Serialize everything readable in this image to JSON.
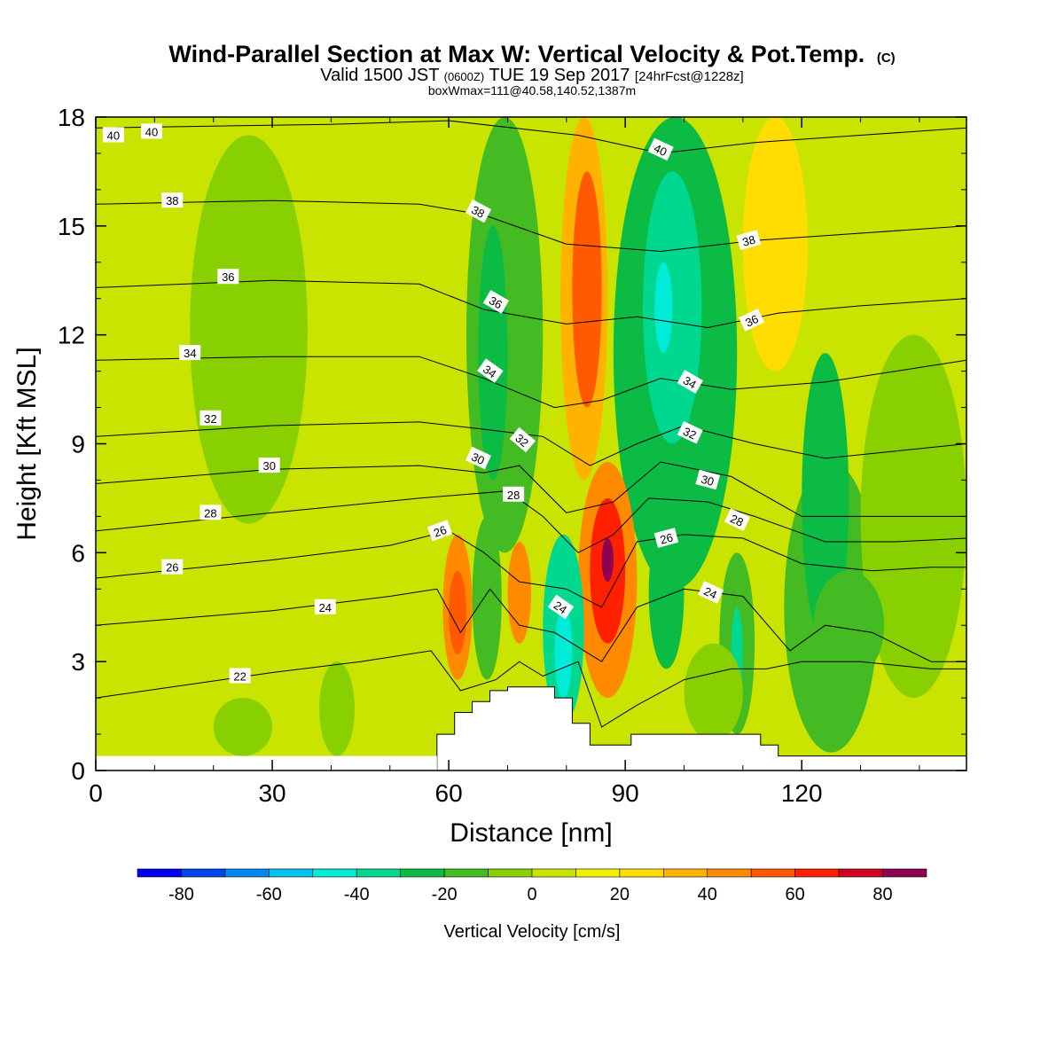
{
  "header": {
    "title": "Wind-Parallel Section at Max W: Vertical Velocity & Pot.Temp.",
    "copyright": "(C)",
    "line2_a": "Valid 1500 JST",
    "line2_b": "(0600Z)",
    "line2_c": "TUE 19 Sep 2017",
    "line2_d": "[24hrFcst@1228z]",
    "line3": "boxWmax=111@40.58,140.52,1387m"
  },
  "chart_data": {
    "type": "heatmap",
    "xlabel": "Distance [nm]",
    "ylabel": "Height [Kft MSL]",
    "xlim": [
      0,
      148
    ],
    "ylim": [
      0,
      18
    ],
    "x_ticks": [
      0,
      30,
      60,
      90,
      120
    ],
    "y_ticks": [
      0,
      3,
      6,
      9,
      12,
      15,
      18
    ],
    "colorbar": {
      "label": "Vertical Velocity [cm/s]",
      "bounds": [
        -90,
        90
      ],
      "levels": [
        -90,
        -80,
        -70,
        -60,
        -50,
        -40,
        -30,
        -20,
        -10,
        0,
        10,
        20,
        30,
        40,
        50,
        60,
        70,
        80,
        90
      ],
      "colors": [
        "#0000ee",
        "#0044ee",
        "#0088f0",
        "#00c4f0",
        "#00ecd8",
        "#00d890",
        "#0cbb44",
        "#44bb22",
        "#88d000",
        "#c8e400",
        "#f2f200",
        "#ffdd00",
        "#ffb300",
        "#ff8a00",
        "#ff5a00",
        "#ff2000",
        "#d00020",
        "#900050",
        "#580090"
      ],
      "tick_values": [
        -80,
        -60,
        -40,
        -20,
        0,
        20,
        40,
        60,
        80
      ]
    },
    "terrain": [
      [
        58,
        0
      ],
      [
        58,
        1.0
      ],
      [
        61,
        1.0
      ],
      [
        61,
        1.6
      ],
      [
        64,
        1.6
      ],
      [
        64,
        1.9
      ],
      [
        67,
        1.9
      ],
      [
        67,
        2.2
      ],
      [
        70,
        2.2
      ],
      [
        70,
        2.3
      ],
      [
        78,
        2.3
      ],
      [
        78,
        2.0
      ],
      [
        81,
        2.0
      ],
      [
        81,
        1.3
      ],
      [
        84,
        1.3
      ],
      [
        84,
        0.7
      ],
      [
        91,
        0.7
      ],
      [
        91,
        1.0
      ],
      [
        113,
        1.0
      ],
      [
        113,
        0.7
      ],
      [
        116,
        0.7
      ],
      [
        116,
        0.4
      ],
      [
        148,
        0.4
      ],
      [
        148,
        0
      ]
    ],
    "vertical_velocity_cells": [
      {
        "x": [
          16,
          36
        ],
        "y": [
          6.8,
          17.5
        ],
        "value": -5
      },
      {
        "x": [
          22,
          34
        ],
        "y": [
          8.5,
          16.5
        ],
        "value": -8
      },
      {
        "x": [
          63,
          76
        ],
        "y": [
          6.0,
          18.0
        ],
        "value": -15
      },
      {
        "x": [
          65,
          70
        ],
        "y": [
          8.0,
          15.0
        ],
        "value": -22
      },
      {
        "x": [
          79,
          87
        ],
        "y": [
          8.0,
          18.0
        ],
        "value": 35
      },
      {
        "x": [
          81,
          86
        ],
        "y": [
          10.0,
          16.5
        ],
        "value": 50
      },
      {
        "x": [
          88,
          109
        ],
        "y": [
          5.0,
          18.0
        ],
        "value": -25
      },
      {
        "x": [
          93,
          103
        ],
        "y": [
          9.0,
          16.5
        ],
        "value": -35
      },
      {
        "x": [
          95,
          98
        ],
        "y": [
          11.5,
          14.0
        ],
        "value": -45
      },
      {
        "x": [
          110,
          121
        ],
        "y": [
          11.0,
          18.0
        ],
        "value": 25
      },
      {
        "x": [
          82,
          92
        ],
        "y": [
          2.0,
          8.5
        ],
        "value": 45
      },
      {
        "x": [
          84,
          90
        ],
        "y": [
          3.5,
          7.5
        ],
        "value": 65
      },
      {
        "x": [
          86,
          88
        ],
        "y": [
          5.2,
          6.4
        ],
        "value": 85
      },
      {
        "x": [
          59,
          64
        ],
        "y": [
          2.5,
          6.5
        ],
        "value": 40
      },
      {
        "x": [
          60,
          63
        ],
        "y": [
          3.2,
          5.5
        ],
        "value": 58
      },
      {
        "x": [
          70,
          74
        ],
        "y": [
          3.5,
          6.3
        ],
        "value": 40
      },
      {
        "x": [
          64,
          69
        ],
        "y": [
          2.5,
          7.0
        ],
        "value": -18
      },
      {
        "x": [
          76,
          83
        ],
        "y": [
          1.3,
          6.5
        ],
        "value": -35
      },
      {
        "x": [
          78,
          81
        ],
        "y": [
          2.0,
          4.5
        ],
        "value": -45
      },
      {
        "x": [
          94,
          100
        ],
        "y": [
          2.8,
          7.0
        ],
        "value": -30
      },
      {
        "x": [
          106,
          112
        ],
        "y": [
          1.0,
          6.0
        ],
        "value": -18
      },
      {
        "x": [
          108,
          110
        ],
        "y": [
          2.0,
          4.5
        ],
        "value": -40
      },
      {
        "x": [
          117,
          133
        ],
        "y": [
          0.5,
          8.5
        ],
        "value": -15
      },
      {
        "x": [
          120,
          128
        ],
        "y": [
          3.5,
          11.5
        ],
        "value": -22
      },
      {
        "x": [
          122,
          126
        ],
        "y": [
          7.0,
          11.0
        ],
        "value": -28
      },
      {
        "x": [
          130,
          148
        ],
        "y": [
          2.0,
          12.0
        ],
        "value": -7
      },
      {
        "x": [
          0,
          58
        ],
        "y": [
          0.4,
          3.5
        ],
        "value": 3
      },
      {
        "x": [
          38,
          44
        ],
        "y": [
          0.4,
          3.0
        ],
        "value": -8
      },
      {
        "x": [
          20,
          30
        ],
        "y": [
          0.4,
          2.0
        ],
        "value": -5
      },
      {
        "x": [
          122,
          134
        ],
        "y": [
          2.5,
          5.5
        ],
        "value": -12
      },
      {
        "x": [
          100,
          110
        ],
        "y": [
          0.8,
          3.5
        ],
        "value": -10
      }
    ],
    "isentropes": [
      {
        "label": "22",
        "points": [
          [
            0,
            2.0
          ],
          [
            30,
            2.7
          ],
          [
            45,
            3.0
          ],
          [
            57,
            3.3
          ],
          [
            62,
            2.2
          ],
          [
            68,
            2.5
          ],
          [
            72,
            3.0
          ],
          [
            76,
            2.6
          ],
          [
            82,
            3.0
          ],
          [
            86,
            1.2
          ],
          [
            92,
            1.8
          ],
          [
            100,
            2.5
          ],
          [
            108,
            2.8
          ],
          [
            114,
            2.8
          ],
          [
            120,
            3.0
          ],
          [
            130,
            3.0
          ],
          [
            142,
            2.8
          ],
          [
            148,
            2.8
          ]
        ]
      },
      {
        "label": "24",
        "points": [
          [
            0,
            4.0
          ],
          [
            30,
            4.4
          ],
          [
            50,
            4.8
          ],
          [
            58,
            5.0
          ],
          [
            62,
            3.8
          ],
          [
            67,
            5.0
          ],
          [
            72,
            4.0
          ],
          [
            78,
            3.8
          ],
          [
            86,
            3.0
          ],
          [
            92,
            4.5
          ],
          [
            100,
            5.0
          ],
          [
            110,
            4.8
          ],
          [
            118,
            3.3
          ],
          [
            124,
            4.0
          ],
          [
            132,
            3.8
          ],
          [
            142,
            3.0
          ],
          [
            148,
            3.0
          ]
        ]
      },
      {
        "label": "26",
        "points": [
          [
            0,
            5.3
          ],
          [
            30,
            5.8
          ],
          [
            50,
            6.2
          ],
          [
            60,
            6.6
          ],
          [
            66,
            6.0
          ],
          [
            72,
            5.2
          ],
          [
            80,
            5.0
          ],
          [
            86,
            4.5
          ],
          [
            92,
            6.3
          ],
          [
            100,
            6.5
          ],
          [
            110,
            6.4
          ],
          [
            120,
            5.7
          ],
          [
            132,
            5.5
          ],
          [
            142,
            5.6
          ],
          [
            148,
            5.6
          ]
        ]
      },
      {
        "label": "28",
        "points": [
          [
            0,
            6.6
          ],
          [
            30,
            7.1
          ],
          [
            55,
            7.5
          ],
          [
            70,
            7.7
          ],
          [
            76,
            7.0
          ],
          [
            82,
            6.0
          ],
          [
            88,
            6.5
          ],
          [
            94,
            7.5
          ],
          [
            104,
            7.4
          ],
          [
            112,
            7.0
          ],
          [
            124,
            6.3
          ],
          [
            136,
            6.3
          ],
          [
            148,
            6.4
          ]
        ]
      },
      {
        "label": "30",
        "points": [
          [
            0,
            7.9
          ],
          [
            30,
            8.3
          ],
          [
            55,
            8.4
          ],
          [
            66,
            8.2
          ],
          [
            72,
            8.4
          ],
          [
            80,
            7.1
          ],
          [
            88,
            7.4
          ],
          [
            96,
            8.5
          ],
          [
            108,
            8.1
          ],
          [
            120,
            7.0
          ],
          [
            136,
            7.0
          ],
          [
            148,
            7.0
          ]
        ]
      },
      {
        "label": "32",
        "points": [
          [
            0,
            9.2
          ],
          [
            30,
            9.5
          ],
          [
            55,
            9.6
          ],
          [
            66,
            9.4
          ],
          [
            76,
            9.2
          ],
          [
            84,
            8.4
          ],
          [
            92,
            9.0
          ],
          [
            100,
            9.5
          ],
          [
            112,
            9.0
          ],
          [
            124,
            8.6
          ],
          [
            136,
            8.8
          ],
          [
            148,
            9.0
          ]
        ]
      },
      {
        "label": "34",
        "points": [
          [
            0,
            11.3
          ],
          [
            30,
            11.4
          ],
          [
            55,
            11.4
          ],
          [
            66,
            10.8
          ],
          [
            78,
            10.0
          ],
          [
            86,
            10.2
          ],
          [
            96,
            10.8
          ],
          [
            108,
            10.5
          ],
          [
            124,
            10.7
          ],
          [
            136,
            11.0
          ],
          [
            148,
            11.3
          ]
        ]
      },
      {
        "label": "36",
        "points": [
          [
            0,
            13.3
          ],
          [
            30,
            13.5
          ],
          [
            55,
            13.4
          ],
          [
            66,
            12.7
          ],
          [
            80,
            12.3
          ],
          [
            92,
            12.5
          ],
          [
            104,
            12.2
          ],
          [
            116,
            12.6
          ],
          [
            130,
            12.8
          ],
          [
            148,
            13.0
          ]
        ]
      },
      {
        "label": "38",
        "points": [
          [
            0,
            15.6
          ],
          [
            30,
            15.7
          ],
          [
            55,
            15.6
          ],
          [
            66,
            15.3
          ],
          [
            80,
            14.5
          ],
          [
            96,
            14.3
          ],
          [
            112,
            14.6
          ],
          [
            130,
            14.8
          ],
          [
            148,
            15.0
          ]
        ]
      },
      {
        "label": "40",
        "points": [
          [
            0,
            17.7
          ],
          [
            40,
            17.8
          ],
          [
            60,
            17.9
          ],
          [
            82,
            17.5
          ],
          [
            96,
            17.0
          ],
          [
            112,
            17.3
          ],
          [
            130,
            17.5
          ],
          [
            148,
            17.7
          ]
        ]
      }
    ],
    "contour_labels": [
      {
        "text": "40",
        "x": 3,
        "y": 17.5,
        "angle": 0
      },
      {
        "text": "40",
        "x": 9.5,
        "y": 17.6,
        "angle": 0
      },
      {
        "text": "38",
        "x": 13,
        "y": 15.7,
        "angle": 0
      },
      {
        "text": "36",
        "x": 22.5,
        "y": 13.6,
        "angle": 0
      },
      {
        "text": "34",
        "x": 16,
        "y": 11.5,
        "angle": 0
      },
      {
        "text": "32",
        "x": 19.5,
        "y": 9.7,
        "angle": 0
      },
      {
        "text": "30",
        "x": 29.5,
        "y": 8.4,
        "angle": 0
      },
      {
        "text": "28",
        "x": 19.5,
        "y": 7.1,
        "angle": 0
      },
      {
        "text": "26",
        "x": 13,
        "y": 5.6,
        "angle": 0
      },
      {
        "text": "24",
        "x": 39,
        "y": 4.5,
        "angle": 0
      },
      {
        "text": "22",
        "x": 24.5,
        "y": 2.6,
        "angle": 0
      },
      {
        "text": "38",
        "x": 65,
        "y": 15.4,
        "angle": 28
      },
      {
        "text": "36",
        "x": 68,
        "y": 12.9,
        "angle": 30
      },
      {
        "text": "34",
        "x": 67,
        "y": 11.0,
        "angle": 35
      },
      {
        "text": "32",
        "x": 72.5,
        "y": 9.1,
        "angle": 40
      },
      {
        "text": "30",
        "x": 65,
        "y": 8.6,
        "angle": 25
      },
      {
        "text": "28",
        "x": 71,
        "y": 7.6,
        "angle": 0
      },
      {
        "text": "26",
        "x": 58.5,
        "y": 6.6,
        "angle": -20
      },
      {
        "text": "24",
        "x": 79,
        "y": 4.5,
        "angle": 35
      },
      {
        "text": "40",
        "x": 96,
        "y": 17.1,
        "angle": 25
      },
      {
        "text": "38",
        "x": 111,
        "y": 14.6,
        "angle": -15
      },
      {
        "text": "36",
        "x": 111.5,
        "y": 12.4,
        "angle": -25
      },
      {
        "text": "34",
        "x": 101,
        "y": 10.7,
        "angle": 30
      },
      {
        "text": "32",
        "x": 101,
        "y": 9.3,
        "angle": 25
      },
      {
        "text": "30",
        "x": 104,
        "y": 8.0,
        "angle": 15
      },
      {
        "text": "28",
        "x": 109,
        "y": 6.9,
        "angle": 25
      },
      {
        "text": "26",
        "x": 97,
        "y": 6.4,
        "angle": -15
      },
      {
        "text": "24",
        "x": 104.5,
        "y": 4.9,
        "angle": 25
      }
    ]
  }
}
